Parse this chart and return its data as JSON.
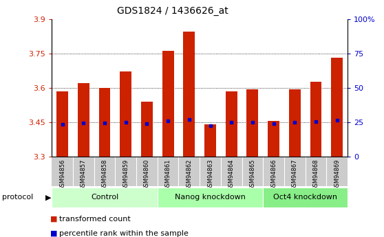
{
  "title": "GDS1824 / 1436626_at",
  "samples": [
    "GSM94856",
    "GSM94857",
    "GSM94858",
    "GSM94859",
    "GSM94860",
    "GSM94861",
    "GSM94862",
    "GSM94863",
    "GSM94864",
    "GSM94865",
    "GSM94866",
    "GSM94867",
    "GSM94868",
    "GSM94869"
  ],
  "transformed_count": [
    3.585,
    3.62,
    3.598,
    3.67,
    3.538,
    3.762,
    3.845,
    3.44,
    3.585,
    3.592,
    3.455,
    3.592,
    3.625,
    3.73
  ],
  "percentile_rank": [
    3.44,
    3.447,
    3.447,
    3.45,
    3.443,
    3.455,
    3.46,
    3.435,
    3.45,
    3.45,
    3.442,
    3.448,
    3.453,
    3.458
  ],
  "bar_bottom": 3.3,
  "ylim_left": [
    3.3,
    3.9
  ],
  "ylim_right": [
    0,
    100
  ],
  "yticks_left": [
    3.3,
    3.45,
    3.6,
    3.75,
    3.9
  ],
  "yticks_right": [
    0,
    25,
    50,
    75,
    100
  ],
  "ytick_labels_left": [
    "3.3",
    "3.45",
    "3.6",
    "3.75",
    "3.9"
  ],
  "ytick_labels_right": [
    "0",
    "25",
    "50",
    "75",
    "100%"
  ],
  "bar_color": "#cc2200",
  "percentile_color": "#0000cc",
  "bg_color_plot": "#ffffff",
  "groups": [
    {
      "label": "Control",
      "start": 0,
      "end": 5,
      "color": "#ccffcc"
    },
    {
      "label": "Nanog knockdown",
      "start": 5,
      "end": 10,
      "color": "#aaffaa"
    },
    {
      "label": "Oct4 knockdown",
      "start": 10,
      "end": 14,
      "color": "#88ee88"
    }
  ],
  "protocol_label": "protocol",
  "legend_items": [
    {
      "color": "#cc2200",
      "label": "transformed count"
    },
    {
      "color": "#0000cc",
      "label": "percentile rank within the sample"
    }
  ],
  "xlabels_bg": "#cccccc",
  "bar_width": 0.55,
  "tick_color_left": "#cc2200",
  "tick_color_right": "#0000cc",
  "group_colors": [
    "#ccffcc",
    "#aaffaa",
    "#88ee88"
  ]
}
